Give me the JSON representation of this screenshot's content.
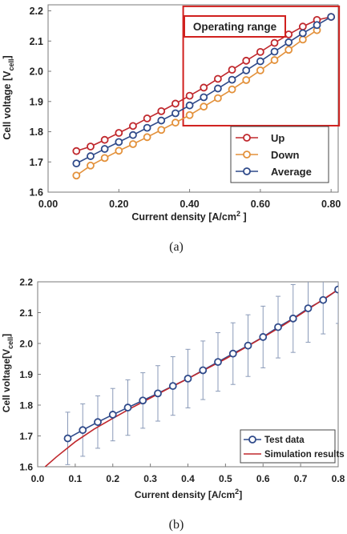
{
  "panel_a": {
    "caption": "(a)",
    "operating_label": "Operating range",
    "xlabel_main": "Current density [A/cm",
    "xlabel_sup": "2",
    "xlabel_end": " ]",
    "ylabel_main": "Cell voltage [V",
    "ylabel_sub": "cell",
    "ylabel_end": "]",
    "colors": {
      "up": "#c0282d",
      "down": "#e3913b",
      "average": "#2f4a8a",
      "box": "#d0201e"
    }
  },
  "panel_b": {
    "caption": "(b)",
    "xlabel_main": "Current density [A/cm",
    "xlabel_sup": "2",
    "xlabel_end": "]",
    "ylabel_main": "Cell voltage[V",
    "ylabel_sub": "cell",
    "ylabel_end": "]",
    "colors": {
      "test": "#2f4a8a",
      "sim": "#c0282d",
      "err": "#8a9ab8"
    }
  },
  "chart_data": [
    {
      "type": "line",
      "xlabel": "Current density [A/cm2 ]",
      "ylabel": "Cell voltage [Vcell]",
      "xlim": [
        0.0,
        0.82
      ],
      "ylim": [
        1.6,
        2.22
      ],
      "xticks": [
        "0.00",
        "0.20",
        "0.40",
        "0.60",
        "0.80"
      ],
      "xtick_values": [
        0.0,
        0.2,
        0.4,
        0.6,
        0.8
      ],
      "yticks": [
        "1.6",
        "1.7",
        "1.8",
        "1.9",
        "2.0",
        "2.1",
        "2.2"
      ],
      "ytick_values": [
        1.6,
        1.7,
        1.8,
        1.9,
        2.0,
        2.1,
        2.2
      ],
      "grid": false,
      "legend": "bottom-right",
      "annotation": "Operating range",
      "annotation_range": [
        0.4,
        0.8
      ],
      "x": [
        0.08,
        0.12,
        0.16,
        0.2,
        0.24,
        0.28,
        0.32,
        0.36,
        0.4,
        0.44,
        0.48,
        0.52,
        0.56,
        0.6,
        0.64,
        0.68,
        0.72,
        0.76,
        0.8
      ],
      "series": [
        {
          "name": "Up",
          "key": "up",
          "values": [
            1.736,
            1.751,
            1.773,
            1.796,
            1.819,
            1.844,
            1.868,
            1.893,
            1.919,
            1.946,
            1.975,
            2.005,
            2.035,
            2.064,
            2.094,
            2.122,
            2.148,
            2.17,
            2.18
          ]
        },
        {
          "name": "Down",
          "key": "down",
          "values": [
            1.655,
            1.688,
            1.713,
            1.737,
            1.759,
            1.782,
            1.806,
            1.83,
            1.855,
            1.883,
            1.911,
            1.94,
            1.971,
            2.003,
            2.037,
            2.071,
            2.105,
            2.136,
            null
          ]
        },
        {
          "name": "Average",
          "key": "average",
          "values": [
            1.695,
            1.719,
            1.743,
            1.766,
            1.789,
            1.813,
            1.837,
            1.861,
            1.887,
            1.914,
            1.943,
            1.972,
            2.003,
            2.033,
            2.065,
            2.096,
            2.126,
            2.153,
            2.18
          ]
        }
      ]
    },
    {
      "type": "line",
      "xlabel": "Current density [A/cm2]",
      "ylabel": "Cell voltage[Vcell]",
      "xlim": [
        0.0,
        0.8
      ],
      "ylim": [
        1.6,
        2.2
      ],
      "xticks": [
        "0.0",
        "0.1",
        "0.2",
        "0.3",
        "0.4",
        "0.5",
        "0.6",
        "0.7",
        "0.8"
      ],
      "xtick_values": [
        0.0,
        0.1,
        0.2,
        0.3,
        0.4,
        0.5,
        0.6,
        0.7,
        0.8
      ],
      "yticks": [
        "1.6",
        "1.7",
        "1.8",
        "1.9",
        "2.0",
        "2.1",
        "2.2"
      ],
      "ytick_values": [
        1.6,
        1.7,
        1.8,
        1.9,
        2.0,
        2.1,
        2.2
      ],
      "grid": false,
      "legend": "bottom-right",
      "test_data": {
        "name": "Test data",
        "x": [
          0.08,
          0.12,
          0.16,
          0.2,
          0.24,
          0.28,
          0.32,
          0.36,
          0.4,
          0.44,
          0.48,
          0.52,
          0.56,
          0.6,
          0.64,
          0.68,
          0.72,
          0.76,
          0.8
        ],
        "y": [
          1.692,
          1.719,
          1.745,
          1.769,
          1.792,
          1.815,
          1.838,
          1.862,
          1.886,
          1.913,
          1.94,
          1.967,
          1.993,
          2.021,
          2.053,
          2.081,
          2.114,
          2.141,
          2.175
        ],
        "err": [
          0.085,
          0.085,
          0.085,
          0.085,
          0.09,
          0.09,
          0.09,
          0.095,
          0.095,
          0.095,
          0.095,
          0.1,
          0.1,
          0.1,
          0.1,
          0.11,
          0.11,
          0.11,
          0.11
        ]
      },
      "simulation": {
        "name": "Simulation results",
        "x": [
          0.02,
          0.05,
          0.1,
          0.15,
          0.2,
          0.25,
          0.3,
          0.35,
          0.4,
          0.45,
          0.5,
          0.55,
          0.6,
          0.65,
          0.7,
          0.75,
          0.8
        ],
        "y": [
          1.6,
          1.632,
          1.681,
          1.722,
          1.757,
          1.791,
          1.823,
          1.855,
          1.886,
          1.918,
          1.95,
          1.985,
          2.02,
          2.056,
          2.095,
          2.135,
          2.175
        ]
      }
    }
  ]
}
